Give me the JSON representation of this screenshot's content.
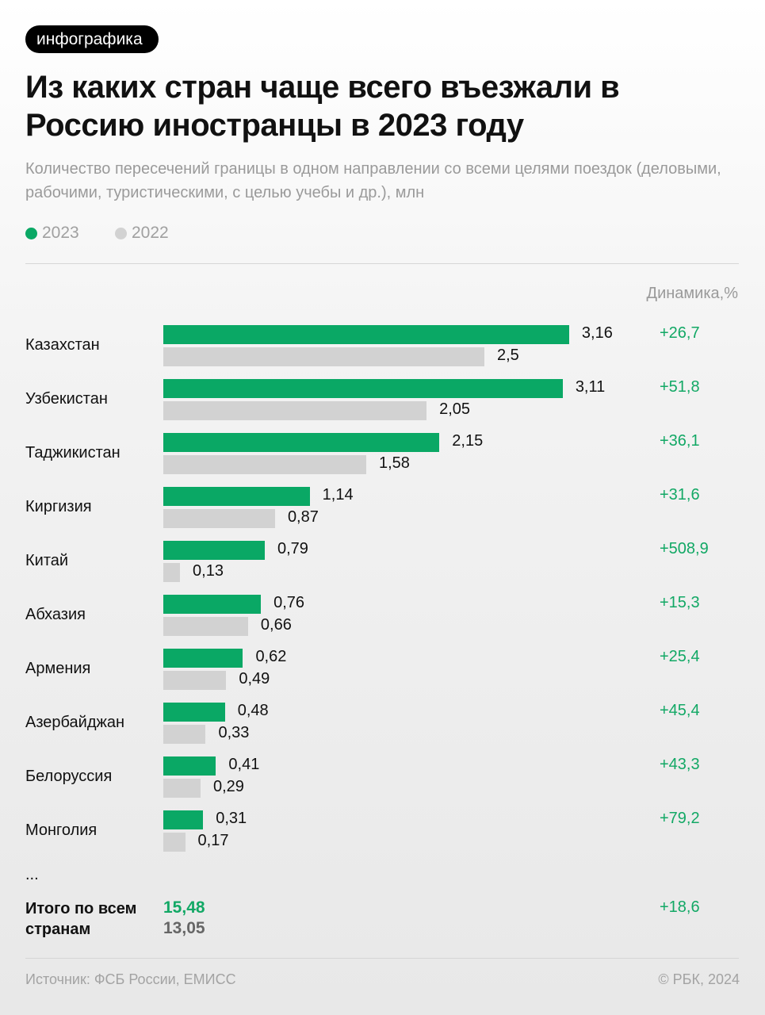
{
  "tag": "инфографика",
  "colors": {
    "y2023": "#0aa865",
    "y2022": "#d2d2d2"
  },
  "chart_data": {
    "type": "bar",
    "title": "Из каких стран чаще всего въезжали в Россию иностранцы в 2023 году",
    "subtitle": "Количество пересечений границы в одном направлении со всеми целями поездок (деловыми, рабочими, туристическими, с целью учебы и др.), млн",
    "legend": [
      "2023",
      "2022"
    ],
    "legend_position": "top-left",
    "dynamics_header": "Динамика,%",
    "categories": [
      "Казахстан",
      "Узбекистан",
      "Таджикистан",
      "Киргизия",
      "Китай",
      "Абхазия",
      "Армения",
      "Азербайджан",
      "Белоруссия",
      "Монголия"
    ],
    "series": [
      {
        "name": "2023",
        "values": [
          3.16,
          3.11,
          2.15,
          1.14,
          0.79,
          0.76,
          0.62,
          0.48,
          0.41,
          0.31
        ],
        "labels": [
          "3,16",
          "3,11",
          "2,15",
          "1,14",
          "0,79",
          "0,76",
          "0,62",
          "0,48",
          "0,41",
          "0,31"
        ]
      },
      {
        "name": "2022",
        "values": [
          2.5,
          2.05,
          1.58,
          0.87,
          0.13,
          0.66,
          0.49,
          0.33,
          0.29,
          0.17
        ],
        "labels": [
          "2,5",
          "2,05",
          "1,58",
          "0,87",
          "0,13",
          "0,66",
          "0,49",
          "0,33",
          "0,29",
          "0,17"
        ]
      }
    ],
    "dynamics": [
      "+26,7",
      "+51,8",
      "+36,1",
      "+31,6",
      "+508,9",
      "+15,3",
      "+25,4",
      "+45,4",
      "+43,3",
      "+79,2"
    ],
    "ellipsis": "...",
    "total": {
      "label": "Итого по всем странам",
      "v2023": "15,48",
      "v2022": "13,05",
      "dynamics": "+18,6"
    }
  },
  "footer": {
    "source": "Источник: ФСБ России, ЕМИСС",
    "copyright": "© РБК, 2024"
  }
}
